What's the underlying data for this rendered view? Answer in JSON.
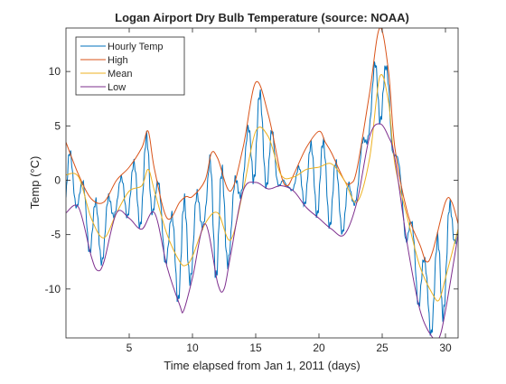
{
  "chart_data": {
    "type": "line",
    "title": "Logan Airport Dry Bulb Temperature (source: NOAA)",
    "xlabel": "Time elapsed from Jan 1, 2011 (days)",
    "ylabel": "Temp (°C)",
    "xlim": [
      0,
      31
    ],
    "ylim": [
      -14.5,
      14
    ],
    "xticks": [
      5,
      10,
      15,
      20,
      25,
      30
    ],
    "yticks": [
      -10,
      -5,
      0,
      5,
      10
    ],
    "grid": false,
    "legend_position": "top-left",
    "series": [
      {
        "name": "Hourly Temp",
        "color": "#0072BD",
        "style": "oscillating",
        "amplitude_from": "High-Low",
        "cycle_days": 1,
        "start_phase_days": 0.1
      },
      {
        "name": "High",
        "color": "#D95319",
        "x": [
          0,
          1,
          2,
          3,
          4,
          5,
          6,
          6.5,
          7,
          8,
          9,
          9.5,
          10,
          11,
          11.5,
          12,
          13,
          14,
          15,
          16,
          17,
          17.5,
          18,
          19,
          20,
          20.5,
          21,
          22,
          22.5,
          23,
          24,
          24.8,
          25.5,
          26,
          27,
          28,
          28.5,
          29,
          30,
          30.5,
          31
        ],
        "y": [
          3.5,
          0.5,
          -1.7,
          -2,
          0,
          1.2,
          3,
          4.5,
          1,
          -3.5,
          -2,
          -1.5,
          -1.5,
          0,
          2.5,
          2,
          -1,
          3,
          9,
          6,
          0.5,
          -0.5,
          0.5,
          3,
          4.5,
          3.5,
          2.5,
          0,
          -0.3,
          1,
          8,
          14,
          10,
          3,
          -3,
          -6,
          -7.5,
          -6.5,
          -2,
          -2,
          -4
        ]
      },
      {
        "name": "Mean",
        "color": "#EDB120",
        "x": [
          0,
          1,
          2,
          3,
          4,
          5,
          6,
          6.5,
          7,
          8,
          9,
          9.5,
          10,
          11,
          12,
          13,
          14,
          15,
          16,
          17,
          18,
          19,
          20,
          21,
          22,
          23,
          24,
          24.8,
          25.5,
          26,
          27,
          28,
          29,
          29.5,
          30,
          31
        ],
        "y": [
          0.5,
          0.3,
          -3.5,
          -5.3,
          -3,
          -1,
          -0.5,
          1,
          -1,
          -5,
          -7.5,
          -7.8,
          -7,
          -4,
          -3,
          -5.5,
          -1,
          4.5,
          4,
          0.5,
          0.3,
          1,
          1.2,
          1.5,
          0,
          -2,
          2,
          9.5,
          7.2,
          1.5,
          -3.5,
          -8,
          -10.5,
          -11,
          -9,
          -4.5
        ]
      },
      {
        "name": "Low",
        "color": "#7E2F8E",
        "x": [
          0,
          1,
          2,
          2.5,
          3,
          4,
          5,
          6,
          7,
          8,
          9,
          9.3,
          10,
          11,
          12,
          12.5,
          13,
          14,
          15,
          16,
          17,
          18,
          19,
          20,
          21,
          22,
          23,
          24,
          24.8,
          25.5,
          26,
          27,
          28,
          29,
          29.5,
          30,
          31
        ],
        "y": [
          -3,
          -2.5,
          -7,
          -8.3,
          -7.5,
          -3,
          -3.5,
          -4.5,
          -3,
          -8,
          -11.5,
          -12,
          -9,
          -4,
          -9.5,
          -10,
          -7,
          -1,
          -0.2,
          -0.8,
          -0.5,
          -1,
          -2.5,
          -3.5,
          -4.5,
          -5,
          -2,
          4,
          5.2,
          4,
          2,
          -6,
          -12,
          -14.5,
          -14.5,
          -12,
          -5
        ]
      }
    ]
  }
}
